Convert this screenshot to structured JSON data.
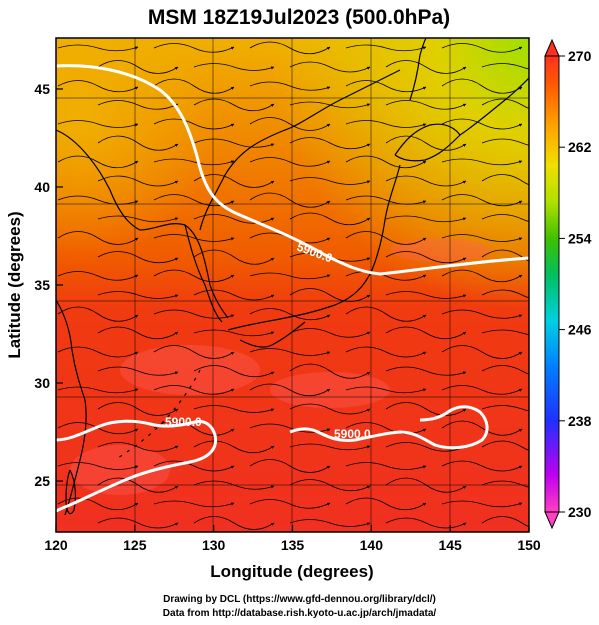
{
  "title": "MSM 18Z19Jul2023 (500.0hPa)",
  "x_axis": {
    "label": "Longitude (degrees)",
    "range": [
      120,
      150
    ],
    "ticks": [
      120,
      125,
      130,
      135,
      140,
      145,
      150
    ],
    "tick_labels": [
      "120",
      "125",
      "130",
      "135",
      "140",
      "145",
      "150"
    ]
  },
  "y_axis": {
    "label": "Latitude  (degrees)",
    "range": [
      22.4,
      47.6
    ],
    "ticks": [
      25,
      30,
      35,
      40,
      45
    ],
    "tick_labels": [
      "25",
      "30",
      "35",
      "40",
      "45"
    ]
  },
  "colorbar": {
    "range": [
      230,
      270
    ],
    "labels": [
      "270",
      "262",
      "254",
      "246",
      "238",
      "230"
    ],
    "stops": [
      "#ff40c0",
      "#a000ff",
      "#2030ff",
      "#00a0ff",
      "#00e8c0",
      "#20c040",
      "#80e000",
      "#e0e000",
      "#ffb000",
      "#ff7000",
      "#ff3000"
    ]
  },
  "contours": [
    {
      "label": "5900.0",
      "level": 5900.0,
      "description_anchor": "north"
    },
    {
      "label": "5900.0",
      "level": 5900.0,
      "description_anchor": "south-west"
    },
    {
      "label": "5900.0",
      "level": 5900.0,
      "description_anchor": "south-east"
    }
  ],
  "credits": {
    "line1": "Drawing by DCL (https://www.gfd-dennou.org/library/dcl/)",
    "line2": "Data from http://database.rish.kyoto-u.ac.jp/arch/jmadata/"
  },
  "colors": {
    "contour": "#ffffff",
    "coast": "#000000",
    "streamline": "#000000"
  }
}
